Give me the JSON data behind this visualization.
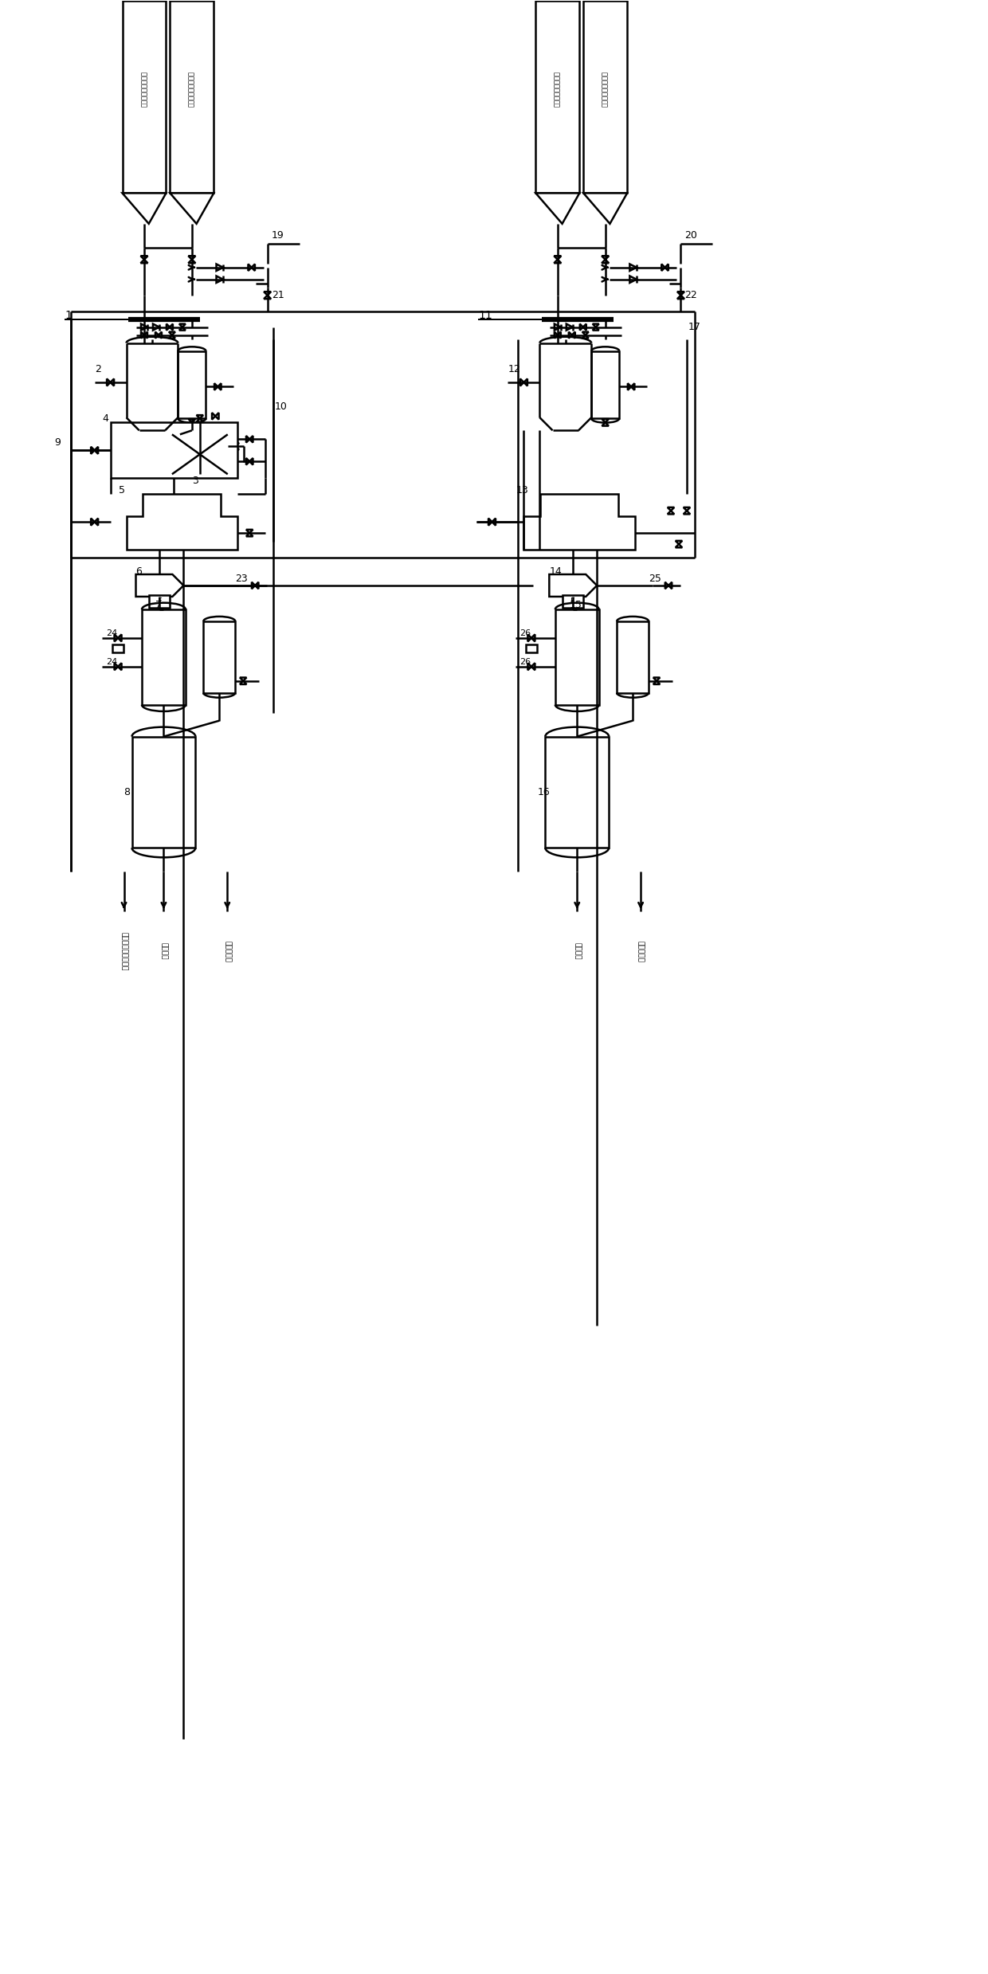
{
  "bg_color": "#ffffff",
  "line_color": "#000000",
  "lw": 1.8,
  "fig_w": 12.4,
  "fig_h": 24.78,
  "left_tower_text": "下古生界含硒天然气",
  "right_tower_text": "上古生界含硒天然气",
  "bottom_label1": "去渗化山鄃处理设备",
  "bottom_label2": "露点控刻",
  "bottom_label3": "至放空火炬",
  "bottom_label4": "露点控刻",
  "bottom_label5": "至放空火炬"
}
